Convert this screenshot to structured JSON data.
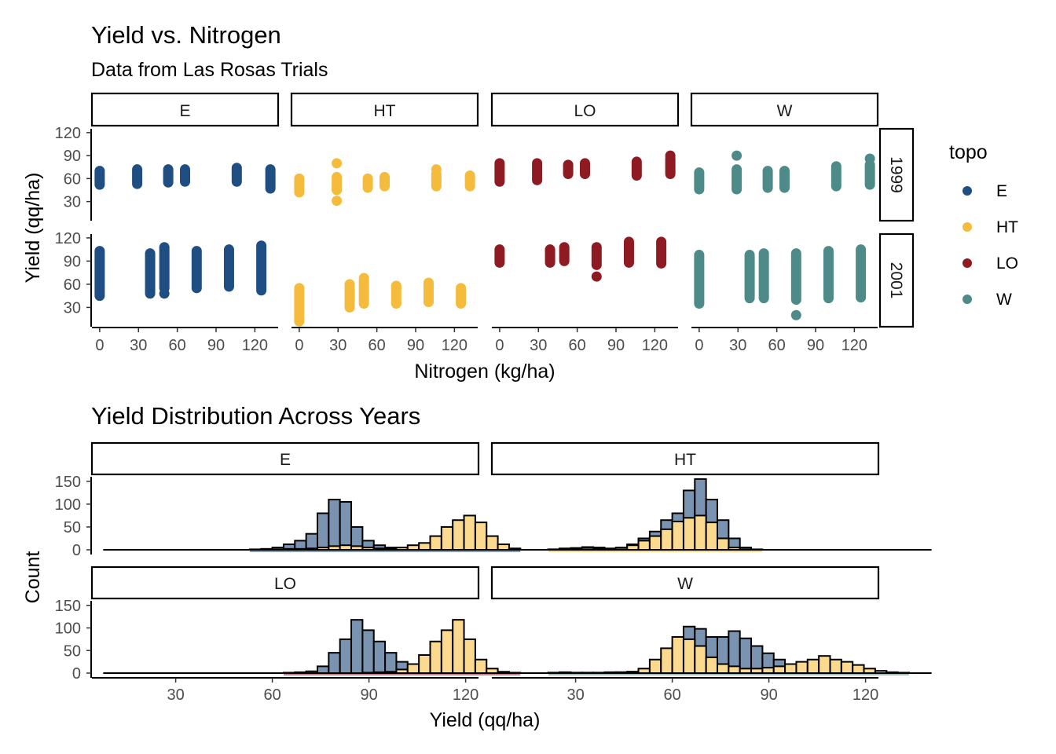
{
  "colors": {
    "E": "#1f4e82",
    "HT": "#f5bb3c",
    "LO": "#8e1a22",
    "W": "#4e8b88",
    "hist_1999": "#fbd98e",
    "hist_2001": "#7993b1"
  },
  "legend": {
    "title": "topo",
    "items": [
      {
        "key": "E",
        "label": "E"
      },
      {
        "key": "HT",
        "label": "HT"
      },
      {
        "key": "LO",
        "label": "LO"
      },
      {
        "key": "W",
        "label": "W"
      }
    ]
  },
  "chart_data": [
    {
      "type": "scatter",
      "title": "Yield vs. Nitrogen",
      "subtitle": "Data from Las Rosas Trials",
      "xlabel": "Nitrogen (kg/ha)",
      "ylabel": "Yield (qq/ha)",
      "xlim": [
        -6,
        138
      ],
      "ylim": [
        5,
        125
      ],
      "xticks": [
        0,
        30,
        60,
        90,
        120
      ],
      "yticks": [
        30,
        60,
        90,
        120
      ],
      "facet_cols": [
        "E",
        "HT",
        "LO",
        "W"
      ],
      "facet_rows": [
        "1999",
        "2001"
      ],
      "grid": false,
      "legend_position": "right",
      "panels": [
        {
          "row": "1999",
          "col": "E",
          "x": [
            0,
            29,
            53,
            66,
            106,
            132
          ],
          "ymin": [
            52,
            53,
            55,
            56,
            56,
            47
          ],
          "ymax": [
            70,
            72,
            72,
            72,
            74,
            72
          ]
        },
        {
          "row": "1999",
          "col": "HT",
          "x": [
            0,
            29,
            53,
            66,
            106,
            132
          ],
          "ymin": [
            42,
            45,
            48,
            50,
            50,
            50
          ],
          "ymax": [
            60,
            62,
            60,
            62,
            66,
            64
          ],
          "outliers": [
            [
              29,
              80
            ],
            [
              29,
              31
            ],
            [
              106,
              72
            ]
          ]
        },
        {
          "row": "1999",
          "col": "LO",
          "x": [
            0,
            29,
            53,
            66,
            106,
            132
          ],
          "ymin": [
            56,
            58,
            66,
            66,
            64,
            66
          ],
          "ymax": [
            80,
            80,
            78,
            80,
            82,
            86
          ],
          "outliers": [
            [
              132,
              90
            ]
          ]
        },
        {
          "row": "1999",
          "col": "W",
          "x": [
            0,
            29,
            53,
            66,
            106,
            132
          ],
          "ymin": [
            46,
            46,
            48,
            48,
            50,
            52
          ],
          "ymax": [
            68,
            72,
            70,
            70,
            76,
            78
          ],
          "outliers": [
            [
              29,
              90
            ],
            [
              132,
              86
            ]
          ]
        },
        {
          "row": "2001",
          "col": "E",
          "x": [
            0,
            39,
            50,
            75,
            100,
            125
          ],
          "ymin": [
            45,
            48,
            55,
            55,
            57,
            52
          ],
          "ymax": [
            103,
            100,
            108,
            103,
            105,
            110
          ],
          "outliers": [
            [
              50,
              48
            ]
          ]
        },
        {
          "row": "2001",
          "col": "HT",
          "x": [
            0,
            39,
            50,
            75,
            100,
            125
          ],
          "ymin": [
            12,
            30,
            35,
            35,
            37,
            35
          ],
          "ymax": [
            55,
            60,
            65,
            58,
            62,
            55
          ],
          "outliers": [
            [
              50,
              68
            ]
          ]
        },
        {
          "row": "2001",
          "col": "LO",
          "x": [
            0,
            39,
            50,
            75,
            100,
            125
          ],
          "ymin": [
            88,
            88,
            90,
            85,
            88,
            87
          ],
          "ymax": [
            105,
            105,
            108,
            108,
            115,
            115
          ],
          "outliers": [
            [
              75,
              70
            ]
          ]
        },
        {
          "row": "2001",
          "col": "W",
          "x": [
            0,
            39,
            50,
            75,
            100,
            125
          ],
          "ymin": [
            35,
            42,
            42,
            40,
            42,
            43
          ],
          "ymax": [
            98,
            98,
            100,
            100,
            103,
            105
          ],
          "outliers": [
            [
              75,
              20
            ]
          ]
        }
      ]
    },
    {
      "type": "bar",
      "title": "Yield Distribution Across Years",
      "xlabel": "Yield (qq/ha)",
      "ylabel": "Count",
      "xlim": [
        4,
        124
      ],
      "ylim": [
        0,
        160
      ],
      "xticks": [
        30,
        60,
        90,
        120
      ],
      "yticks": [
        0,
        50,
        100,
        150
      ],
      "bin_width": 3.5,
      "x_start": 7.5,
      "grid": false,
      "panels": [
        {
          "topo": "E",
          "bins_1999": [
            0,
            0,
            0,
            0,
            0,
            0,
            0,
            0,
            0,
            0,
            0,
            0,
            0,
            0,
            1,
            1,
            2,
            2,
            3,
            5,
            8,
            10,
            8,
            5,
            3,
            3,
            5,
            10,
            15,
            30,
            50,
            65,
            75,
            60,
            30,
            12,
            3,
            0
          ],
          "bins_2001": [
            0,
            0,
            0,
            0,
            0,
            0,
            0,
            0,
            0,
            0,
            0,
            0,
            0,
            1,
            2,
            5,
            12,
            20,
            35,
            80,
            110,
            105,
            50,
            20,
            10,
            5,
            3,
            2,
            1,
            1,
            0,
            0,
            0,
            0,
            0,
            0,
            0,
            0
          ]
        },
        {
          "topo": "HT",
          "bins_1999": [
            0,
            0,
            0,
            0,
            1,
            2,
            3,
            4,
            3,
            2,
            4,
            10,
            20,
            30,
            45,
            62,
            70,
            75,
            60,
            25,
            5,
            1,
            0,
            0,
            0,
            0,
            0,
            0,
            0,
            0,
            0,
            0,
            0,
            0,
            0,
            0,
            0,
            0
          ],
          "bins_2001": [
            0,
            0,
            0,
            0,
            1,
            3,
            4,
            6,
            5,
            3,
            5,
            12,
            25,
            40,
            65,
            80,
            130,
            155,
            110,
            65,
            25,
            5,
            1,
            0,
            0,
            0,
            0,
            0,
            0,
            0,
            0,
            0,
            0,
            0,
            0,
            0,
            0,
            0
          ]
        },
        {
          "topo": "LO",
          "bins_1999": [
            0,
            0,
            0,
            0,
            0,
            0,
            0,
            0,
            0,
            0,
            0,
            0,
            0,
            0,
            0,
            0,
            0,
            0,
            0,
            0,
            0,
            0,
            0,
            1,
            2,
            3,
            8,
            20,
            40,
            70,
            95,
            118,
            75,
            30,
            10,
            3,
            1,
            0
          ],
          "bins_2001": [
            0,
            0,
            0,
            0,
            0,
            0,
            0,
            0,
            0,
            0,
            0,
            0,
            0,
            0,
            0,
            0,
            1,
            2,
            4,
            15,
            45,
            75,
            118,
            95,
            70,
            45,
            25,
            10,
            5,
            2,
            1,
            0,
            0,
            0,
            0,
            0,
            0,
            0
          ]
        },
        {
          "topo": "W",
          "bins_1999": [
            0,
            0,
            0,
            0,
            1,
            2,
            1,
            1,
            1,
            1,
            2,
            3,
            10,
            30,
            55,
            80,
            75,
            60,
            35,
            20,
            15,
            10,
            10,
            12,
            15,
            20,
            25,
            30,
            38,
            30,
            25,
            18,
            10,
            5,
            2,
            1,
            0,
            0
          ],
          "bins_2001": [
            0,
            0,
            0,
            0,
            1,
            1,
            1,
            1,
            1,
            2,
            2,
            3,
            4,
            10,
            20,
            60,
            103,
            98,
            80,
            80,
            93,
            77,
            60,
            44,
            30,
            20,
            12,
            8,
            5,
            3,
            2,
            1,
            1,
            0,
            0,
            0,
            0,
            0
          ]
        }
      ]
    }
  ]
}
